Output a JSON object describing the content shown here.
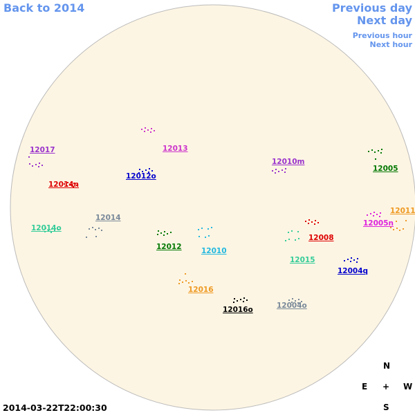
{
  "nav": {
    "back": "Back to 2014",
    "previous_day": "Previous day",
    "next_day": "Next day",
    "previous_hour": "Previous hour",
    "next_hour": "Next hour"
  },
  "regions": [
    {
      "label": "12017",
      "color": "#9932cc"
    },
    {
      "label": "12013",
      "color": "#cc33cc"
    },
    {
      "label": "12012o",
      "color": "#0000cc"
    },
    {
      "label": "12014n",
      "color": "#dd0000"
    },
    {
      "label": "12010m",
      "color": "#9932cc"
    },
    {
      "label": "12005",
      "color": "#007700"
    },
    {
      "label": "12014o",
      "color": "#33cc99"
    },
    {
      "label": "12014",
      "color": "#778899"
    },
    {
      "label": "12012",
      "color": "#007700"
    },
    {
      "label": "12010",
      "color": "#22b8e0"
    },
    {
      "label": "12008",
      "color": "#dd0000"
    },
    {
      "label": "12015",
      "color": "#33cc99"
    },
    {
      "label": "12005n",
      "color": "#dd22dd"
    },
    {
      "label": "12011",
      "color": "#ee9922"
    },
    {
      "label": "12004q",
      "color": "#0000cc"
    },
    {
      "label": "12016",
      "color": "#ee9922"
    },
    {
      "label": "12016o",
      "color": "#000000"
    },
    {
      "label": "12004o",
      "color": "#778899"
    }
  ],
  "compass": {
    "north": "N",
    "east": "E",
    "center": "+",
    "west": "W",
    "south": "S"
  },
  "timestamp": "2014-03-22T22:00:30"
}
